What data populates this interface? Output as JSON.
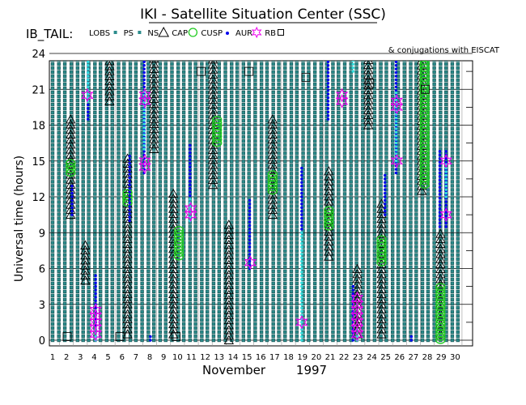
{
  "title": "IKI - Satellite Situation Center (SSC)",
  "region_label": "IB_TAIL:",
  "conjugation_note": "& conjugations with EISCAT",
  "legend": [
    {
      "key": "lobs",
      "label": "LOBS",
      "marker": "square",
      "color": "#2b8c8c"
    },
    {
      "key": "ps",
      "label": "PS",
      "marker": "square",
      "color": "#2b8c8c"
    },
    {
      "key": "ns",
      "label": "NS",
      "marker": "triangle",
      "color": "#000000"
    },
    {
      "key": "cap",
      "label": "CAP",
      "marker": "circle",
      "color": "#22cc22"
    },
    {
      "key": "cusp",
      "label": "CUSP",
      "marker": "dot",
      "color": "#0000ee"
    },
    {
      "key": "aur",
      "label": "AUR",
      "marker": "star",
      "color": "#ee00ee"
    },
    {
      "key": "rb",
      "label": "RB",
      "marker": "square",
      "color": "#000000"
    }
  ],
  "chart_data": {
    "type": "scatter",
    "title": "IKI - Satellite Situation Center (SSC)",
    "xlabel": "November",
    "xlabel_year": "1997",
    "ylabel": "Universal time (hours)",
    "xlim": [
      0.5,
      30.5
    ],
    "ylim": [
      -0.5,
      25
    ],
    "x_ticks": [
      1,
      2,
      3,
      4,
      5,
      6,
      7,
      8,
      9,
      10,
      11,
      12,
      13,
      14,
      15,
      16,
      17,
      18,
      19,
      20,
      21,
      22,
      23,
      24,
      25,
      26,
      27,
      28,
      29,
      30
    ],
    "y_ticks": [
      0,
      3,
      6,
      9,
      12,
      15,
      18,
      21,
      24
    ],
    "grid": true,
    "legend_position": "top",
    "colors": {
      "lobs_ps": "#2b8c8c",
      "ns": "#000000",
      "cap": "#22cc22",
      "cusp": "#0000ee",
      "cusp_light": "#33dddd",
      "aur": "#ee00ee",
      "rb": "#000000"
    },
    "series": [
      {
        "name": "LOBS/PS",
        "key": "lobs",
        "note": "continuous teal markers at every day, 0-24 UT",
        "bands": [
          [
            1.0,
            0,
            24
          ],
          [
            1.45,
            0,
            24
          ],
          [
            1.88,
            0,
            24
          ],
          [
            2.35,
            0,
            24
          ],
          [
            2.8,
            0,
            24
          ],
          [
            3.2,
            0,
            24
          ],
          [
            3.6,
            0,
            24
          ],
          [
            4.05,
            0,
            24
          ],
          [
            4.45,
            0,
            24
          ],
          [
            4.9,
            0,
            24
          ],
          [
            5.3,
            0,
            24
          ],
          [
            5.75,
            0,
            24
          ],
          [
            6.15,
            0,
            24
          ],
          [
            6.6,
            0,
            24
          ],
          [
            7.0,
            0,
            24
          ],
          [
            7.45,
            0,
            24
          ],
          [
            7.9,
            0,
            24
          ],
          [
            8.3,
            0,
            24
          ],
          [
            8.75,
            0,
            24
          ],
          [
            9.15,
            0,
            24
          ],
          [
            9.6,
            0,
            24
          ],
          [
            10.05,
            0,
            24
          ],
          [
            10.45,
            0,
            24
          ],
          [
            10.9,
            0,
            24
          ],
          [
            11.3,
            0,
            24
          ],
          [
            11.75,
            0,
            24
          ],
          [
            12.15,
            0,
            24
          ],
          [
            12.6,
            0,
            24
          ],
          [
            13.0,
            0,
            24
          ],
          [
            13.45,
            0,
            24
          ],
          [
            13.9,
            0,
            24
          ],
          [
            14.3,
            0,
            24
          ],
          [
            14.75,
            0,
            24
          ],
          [
            15.15,
            0,
            24
          ],
          [
            15.6,
            0,
            24
          ],
          [
            16.05,
            0,
            24
          ],
          [
            16.45,
            0,
            24
          ],
          [
            16.9,
            0,
            24
          ],
          [
            17.3,
            0,
            24
          ],
          [
            17.75,
            0,
            24
          ],
          [
            18.2,
            0,
            24
          ],
          [
            18.6,
            0,
            24
          ],
          [
            19.05,
            0,
            24
          ],
          [
            19.45,
            0,
            24
          ],
          [
            19.9,
            0,
            24
          ],
          [
            20.35,
            0,
            24
          ],
          [
            20.75,
            0,
            24
          ],
          [
            21.2,
            0,
            24
          ],
          [
            21.6,
            0,
            24
          ],
          [
            22.05,
            0,
            24
          ],
          [
            22.5,
            0,
            24
          ],
          [
            22.9,
            0,
            24
          ],
          [
            23.35,
            0,
            24
          ],
          [
            23.75,
            0,
            24
          ],
          [
            24.2,
            0,
            24
          ],
          [
            24.65,
            0,
            24
          ],
          [
            25.05,
            0,
            24
          ],
          [
            25.5,
            0,
            24
          ],
          [
            25.9,
            0,
            24
          ],
          [
            26.35,
            0,
            24
          ],
          [
            26.8,
            0,
            24
          ],
          [
            27.2,
            0,
            24
          ],
          [
            27.65,
            0,
            24
          ],
          [
            28.05,
            0,
            24
          ],
          [
            28.5,
            0,
            24
          ],
          [
            28.95,
            0,
            24
          ],
          [
            29.35,
            0,
            24
          ],
          [
            29.8,
            0,
            24
          ],
          [
            30.2,
            0,
            24
          ]
        ]
      },
      {
        "name": "NS",
        "key": "ns",
        "bands": [
          [
            2.3,
            10.5,
            18.5
          ],
          [
            3.35,
            5.0,
            8.0
          ],
          [
            5.1,
            20.0,
            24.5
          ],
          [
            6.4,
            0.5,
            15.5
          ],
          [
            8.3,
            16.0,
            24.5
          ],
          [
            9.7,
            0.5,
            12.5
          ],
          [
            12.55,
            13.0,
            24.5
          ],
          [
            13.7,
            0,
            10.0
          ],
          [
            16.85,
            10.5,
            18.5
          ],
          [
            20.9,
            7.0,
            14.5
          ],
          [
            22.95,
            0.5,
            6.0
          ],
          [
            23.75,
            18.0,
            24.5
          ],
          [
            24.7,
            0.5,
            11.5
          ],
          [
            27.6,
            12.5,
            24.5
          ],
          [
            28.95,
            0.5,
            9.0
          ]
        ]
      },
      {
        "name": "CAP",
        "key": "cap",
        "bands": [
          [
            2.3,
            14.0,
            15.0
          ],
          [
            6.4,
            11.5,
            12.5
          ],
          [
            10.1,
            7.0,
            9.5
          ],
          [
            12.85,
            16.5,
            18.5
          ],
          [
            16.85,
            12.5,
            14.0
          ],
          [
            20.9,
            9.5,
            11.0
          ],
          [
            24.7,
            6.5,
            8.5
          ],
          [
            27.8,
            13.0,
            24.5
          ],
          [
            28.95,
            0,
            4.5
          ]
        ]
      },
      {
        "name": "CUSP",
        "key": "cusp",
        "bands": [
          [
            2.4,
            10.5,
            13.0
          ],
          [
            3.55,
            18.5,
            24.0
          ],
          [
            4.1,
            0,
            5.5
          ],
          [
            6.55,
            10.0,
            15.5
          ],
          [
            7.6,
            14.0,
            24.0
          ],
          [
            8.05,
            0,
            0.5
          ],
          [
            10.9,
            10.0,
            16.5
          ],
          [
            15.2,
            6.0,
            12.0
          ],
          [
            18.95,
            9.0,
            14.5
          ],
          [
            20.85,
            18.5,
            24.0
          ],
          [
            22.65,
            0,
            4.5
          ],
          [
            24.95,
            10.5,
            14.0
          ],
          [
            25.75,
            14.0,
            24.5
          ],
          [
            26.85,
            0,
            0.5
          ],
          [
            28.9,
            9.5,
            16.0
          ],
          [
            29.35,
            9.5,
            16.0
          ]
        ]
      },
      {
        "name": "CUSP (EISCAT)",
        "key": "cusp_light",
        "bands": [
          [
            3.55,
            20.0,
            24.5
          ],
          [
            4.1,
            0,
            1.0
          ],
          [
            7.6,
            16.0,
            21.0
          ],
          [
            10.9,
            10.0,
            12.0
          ],
          [
            18.95,
            0,
            9.0
          ],
          [
            22.65,
            22.5,
            24.5
          ],
          [
            22.95,
            0,
            1.0
          ],
          [
            25.75,
            15.0,
            21.0
          ],
          [
            29.35,
            12.0,
            15.0
          ]
        ]
      },
      {
        "name": "AUR",
        "key": "aur",
        "points": [
          [
            3.5,
            20.5
          ],
          [
            4.1,
            0.5
          ],
          [
            4.1,
            1.0
          ],
          [
            4.1,
            1.5
          ],
          [
            4.1,
            2.0
          ],
          [
            4.1,
            2.5
          ],
          [
            7.65,
            20.0
          ],
          [
            7.65,
            20.5
          ],
          [
            7.65,
            14.5
          ],
          [
            7.65,
            15.0
          ],
          [
            10.95,
            10.5
          ],
          [
            10.95,
            11.0
          ],
          [
            15.25,
            6.5
          ],
          [
            18.95,
            1.5
          ],
          [
            21.85,
            20.0
          ],
          [
            21.85,
            20.5
          ],
          [
            22.95,
            0.5
          ],
          [
            22.95,
            1.0
          ],
          [
            22.95,
            1.5
          ],
          [
            22.95,
            2.0
          ],
          [
            22.95,
            2.5
          ],
          [
            22.95,
            3.0
          ],
          [
            22.95,
            3.5
          ],
          [
            25.8,
            19.5
          ],
          [
            25.8,
            20.0
          ],
          [
            25.8,
            15.0
          ],
          [
            29.35,
            15.0
          ],
          [
            29.35,
            10.5
          ]
        ]
      },
      {
        "name": "RB",
        "key": "rb",
        "points": [
          [
            2.05,
            0.3
          ],
          [
            5.85,
            0.3
          ],
          [
            9.9,
            0.3
          ],
          [
            8.25,
            24.0
          ],
          [
            11.7,
            22.5
          ],
          [
            12.55,
            24.0
          ],
          [
            15.15,
            22.5
          ],
          [
            19.25,
            22.0
          ],
          [
            23.85,
            21.5
          ],
          [
            27.85,
            21.0
          ]
        ]
      }
    ]
  }
}
